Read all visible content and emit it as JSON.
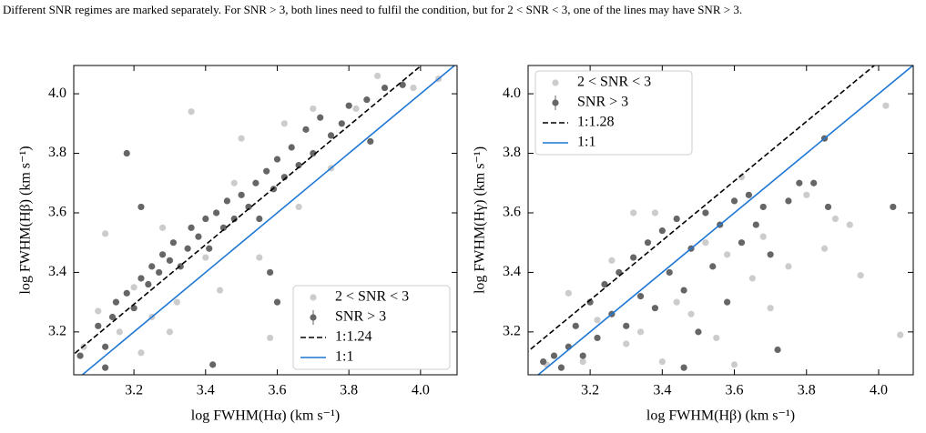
{
  "caption": "Different SNR regimes are marked separately. For SNR > 3, both lines need to fulfil the condition, but for 2 < SNR < 3, one of the lines may have SNR > 3.",
  "chart_data": [
    {
      "type": "scatter",
      "xlabel": "log FWHM(Hα) (km s⁻¹)",
      "ylabel": "log FWHM(Hβ) (km s⁻¹)",
      "xlim": [
        3.032,
        4.102
      ],
      "ylim": [
        3.056,
        4.095
      ],
      "xticks": [
        3.2,
        3.4,
        3.6,
        3.8,
        {
          "value": 4,
          "label": "4.0"
        }
      ],
      "yticks": [
        3.2,
        3.4,
        3.6,
        3.8,
        {
          "value": 4,
          "label": "4.0"
        }
      ],
      "legend": "lower right",
      "series": [
        {
          "name": "2 < SNR < 3",
          "color": "#cccccc",
          "kind": "points",
          "x": [
            3.06,
            3.1,
            3.12,
            3.16,
            3.2,
            3.25,
            3.28,
            3.32,
            3.36,
            3.4,
            3.44,
            3.48,
            3.5,
            3.55,
            3.58,
            3.62,
            3.66,
            3.7,
            3.75,
            3.82,
            3.88,
            3.98,
            4.05,
            3.22,
            3.3
          ],
          "values": [
            3.15,
            3.27,
            3.53,
            3.2,
            3.35,
            3.25,
            3.55,
            3.3,
            3.94,
            3.45,
            3.34,
            3.7,
            3.85,
            3.45,
            3.18,
            3.9,
            3.62,
            3.95,
            3.75,
            3.95,
            4.06,
            4.02,
            4.05,
            3.13,
            3.2
          ]
        },
        {
          "name": "SNR > 3",
          "color": "#666666",
          "kind": "points",
          "x": [
            3.1,
            3.12,
            3.14,
            3.15,
            3.18,
            3.2,
            3.22,
            3.24,
            3.25,
            3.27,
            3.28,
            3.3,
            3.31,
            3.33,
            3.35,
            3.36,
            3.38,
            3.4,
            3.41,
            3.43,
            3.45,
            3.46,
            3.48,
            3.5,
            3.52,
            3.54,
            3.55,
            3.57,
            3.59,
            3.6,
            3.62,
            3.64,
            3.66,
            3.68,
            3.7,
            3.72,
            3.75,
            3.78,
            3.8,
            3.85,
            3.9,
            3.95,
            3.12,
            3.42,
            3.6,
            3.58,
            3.22,
            3.18,
            3.05,
            3.86
          ],
          "values": [
            3.22,
            3.15,
            3.25,
            3.3,
            3.33,
            3.28,
            3.38,
            3.36,
            3.42,
            3.4,
            3.46,
            3.44,
            3.5,
            3.42,
            3.48,
            3.55,
            3.52,
            3.58,
            3.48,
            3.6,
            3.55,
            3.64,
            3.58,
            3.66,
            3.62,
            3.7,
            3.58,
            3.74,
            3.68,
            3.78,
            3.72,
            3.82,
            3.76,
            3.88,
            3.8,
            3.92,
            3.86,
            3.9,
            3.96,
            3.98,
            4.02,
            4.03,
            3.08,
            3.09,
            3.3,
            3.4,
            3.62,
            3.8,
            3.12,
            3.84
          ]
        },
        {
          "name": "1:1.24",
          "color": "#000000",
          "kind": "line",
          "dashed": true,
          "x": [
            3.0,
            4.2
          ],
          "values": [
            3.093,
            4.293
          ]
        },
        {
          "name": "1:1",
          "color": "#1f77d4",
          "kind": "line",
          "dashed": false,
          "x": [
            3.0,
            4.2
          ],
          "values": [
            3.0,
            4.2
          ]
        }
      ]
    },
    {
      "type": "scatter",
      "xlabel": "log FWHM(Hβ) (km s⁻¹)",
      "ylabel": "log FWHM(Hγ) (km s⁻¹)",
      "xlim": [
        3.028,
        4.096
      ],
      "ylim": [
        3.056,
        4.095
      ],
      "xticks": [
        3.2,
        3.4,
        3.6,
        3.8,
        {
          "value": 4,
          "label": "4.0"
        }
      ],
      "yticks": [
        3.2,
        3.4,
        3.6,
        3.8,
        {
          "value": 4,
          "label": "4.0"
        }
      ],
      "legend": "upper left",
      "series": [
        {
          "name": "2 < SNR < 3",
          "color": "#cccccc",
          "kind": "points",
          "x": [
            3.08,
            3.14,
            3.18,
            3.22,
            3.26,
            3.3,
            3.34,
            3.38,
            3.4,
            3.44,
            3.48,
            3.52,
            3.55,
            3.58,
            3.62,
            3.65,
            3.7,
            3.75,
            3.8,
            3.85,
            3.88,
            3.92,
            3.95,
            4.02,
            4.06,
            3.6,
            3.32,
            3.68
          ],
          "values": [
            3.09,
            3.33,
            3.1,
            3.24,
            3.44,
            3.16,
            3.2,
            3.6,
            3.1,
            3.3,
            3.26,
            3.5,
            3.18,
            3.46,
            3.72,
            3.38,
            3.28,
            3.42,
            3.66,
            3.48,
            3.58,
            3.56,
            3.39,
            3.96,
            3.19,
            3.09,
            3.6,
            3.52
          ]
        },
        {
          "name": "SNR > 3",
          "color": "#666666",
          "kind": "points",
          "x": [
            3.07,
            3.1,
            3.12,
            3.14,
            3.16,
            3.18,
            3.2,
            3.22,
            3.24,
            3.26,
            3.28,
            3.3,
            3.32,
            3.34,
            3.36,
            3.38,
            3.4,
            3.42,
            3.44,
            3.46,
            3.48,
            3.5,
            3.52,
            3.54,
            3.56,
            3.58,
            3.6,
            3.62,
            3.64,
            3.66,
            3.68,
            3.7,
            3.72,
            3.75,
            3.78,
            3.82,
            3.85,
            3.86,
            4.04,
            3.46
          ],
          "values": [
            3.1,
            3.12,
            3.08,
            3.15,
            3.22,
            3.12,
            3.3,
            3.18,
            3.36,
            3.26,
            3.4,
            3.22,
            3.45,
            3.32,
            3.5,
            3.28,
            3.54,
            3.4,
            3.58,
            3.34,
            3.48,
            3.2,
            3.6,
            3.42,
            3.56,
            3.3,
            3.64,
            3.5,
            3.66,
            3.56,
            3.62,
            3.46,
            3.14,
            3.64,
            3.7,
            3.7,
            3.85,
            3.62,
            3.62,
            3.08
          ]
        },
        {
          "name": "1:1.28",
          "color": "#000000",
          "kind": "line",
          "dashed": true,
          "x": [
            3.0,
            4.2
          ],
          "values": [
            3.107,
            4.307
          ]
        },
        {
          "name": "1:1",
          "color": "#1f77d4",
          "kind": "line",
          "dashed": false,
          "x": [
            3.0,
            4.2
          ],
          "values": [
            3.0,
            4.2
          ]
        }
      ]
    }
  ]
}
